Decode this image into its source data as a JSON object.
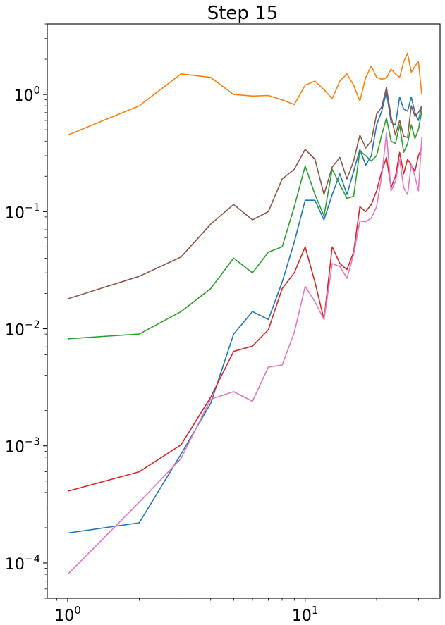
{
  "chart_data": {
    "type": "line",
    "title": "Step 15",
    "xlabel": "",
    "ylabel": "",
    "xscale": "log",
    "yscale": "log",
    "xlim": [
      0.82,
      37
    ],
    "ylim": [
      5e-05,
      4
    ],
    "grid": false,
    "x_ticks": [
      {
        "value": 1,
        "base": "10",
        "exp": "0"
      },
      {
        "value": 10,
        "base": "10",
        "exp": "1"
      }
    ],
    "y_ticks": [
      {
        "value": 0.0001,
        "base": "10",
        "exp": "−4"
      },
      {
        "value": 0.001,
        "base": "10",
        "exp": "−3"
      },
      {
        "value": 0.01,
        "base": "10",
        "exp": "−2"
      },
      {
        "value": 0.1,
        "base": "10",
        "exp": "−1"
      },
      {
        "value": 1,
        "base": "10",
        "exp": "0"
      }
    ],
    "x": [
      1,
      2,
      3,
      4,
      5,
      6,
      7,
      8,
      9,
      10,
      11,
      12,
      13,
      14,
      15,
      16,
      17,
      18,
      19,
      20,
      21,
      22,
      23,
      24,
      25,
      26,
      27,
      28,
      29,
      30,
      31
    ],
    "series": [
      {
        "color": "#1f77b4",
        "values": [
          0.00018,
          0.00022,
          0.00085,
          0.0023,
          0.009,
          0.014,
          0.012,
          0.025,
          0.055,
          0.125,
          0.125,
          0.085,
          0.14,
          0.21,
          0.14,
          0.22,
          0.34,
          0.25,
          0.3,
          0.55,
          0.72,
          1.05,
          0.58,
          0.55,
          0.95,
          0.75,
          0.72,
          0.95,
          0.7,
          0.6,
          0.8
        ]
      },
      {
        "color": "#ff7f0e",
        "values": [
          0.45,
          0.8,
          1.5,
          1.4,
          1.0,
          0.97,
          0.98,
          0.9,
          0.82,
          1.2,
          1.3,
          1.1,
          0.92,
          1.3,
          1.5,
          1.2,
          0.88,
          1.4,
          1.75,
          1.4,
          1.35,
          1.38,
          1.65,
          1.5,
          1.4,
          1.9,
          2.25,
          1.55,
          1.75,
          1.9,
          1.0
        ]
      },
      {
        "color": "#2ca02c",
        "values": [
          0.0082,
          0.009,
          0.014,
          0.022,
          0.04,
          0.03,
          0.045,
          0.05,
          0.11,
          0.245,
          0.14,
          0.092,
          0.23,
          0.17,
          0.13,
          0.135,
          0.33,
          0.3,
          0.27,
          0.3,
          0.45,
          0.63,
          0.4,
          0.38,
          0.55,
          0.32,
          0.38,
          0.55,
          0.42,
          0.5,
          0.73
        ]
      },
      {
        "color": "#d62728",
        "values": [
          0.00041,
          0.0006,
          0.00102,
          0.0026,
          0.0064,
          0.0071,
          0.0098,
          0.022,
          0.03,
          0.05,
          0.025,
          0.012,
          0.05,
          0.036,
          0.032,
          0.045,
          0.11,
          0.1,
          0.115,
          0.15,
          0.22,
          0.29,
          0.16,
          0.2,
          0.32,
          0.21,
          0.28,
          0.25,
          0.22,
          0.3,
          0.35
        ]
      },
      {
        "color": "#8c564b",
        "values": [
          0.018,
          0.028,
          0.041,
          0.078,
          0.115,
          0.085,
          0.1,
          0.19,
          0.23,
          0.34,
          0.28,
          0.14,
          0.24,
          0.29,
          0.19,
          0.27,
          0.45,
          0.35,
          0.4,
          0.68,
          0.78,
          1.15,
          0.65,
          0.45,
          0.6,
          0.44,
          0.43,
          0.8,
          0.65,
          0.7,
          0.8
        ]
      },
      {
        "color": "#e377c2",
        "values": [
          8e-05,
          0.00033,
          0.00078,
          0.0025,
          0.0029,
          0.0024,
          0.0047,
          0.0049,
          0.0093,
          0.023,
          0.017,
          0.012,
          0.036,
          0.034,
          0.027,
          0.043,
          0.083,
          0.082,
          0.088,
          0.11,
          0.2,
          0.47,
          0.15,
          0.18,
          0.28,
          0.16,
          0.14,
          0.25,
          0.2,
          0.15,
          0.43
        ]
      }
    ]
  }
}
